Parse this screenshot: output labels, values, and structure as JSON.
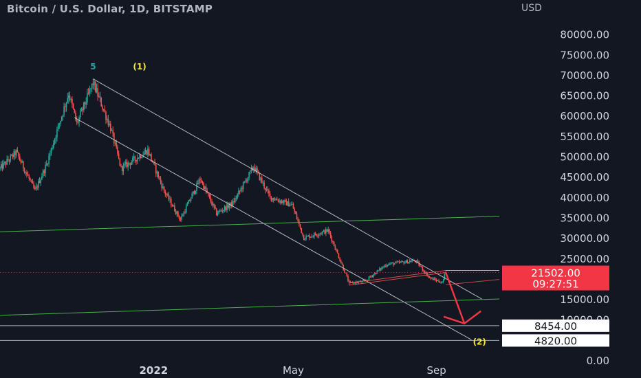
{
  "header": {
    "title": "Bitcoin / U.S. Dollar, 1D, BITSTAMP",
    "currency": "USD"
  },
  "colors": {
    "background": "#131722",
    "bull": "#26a69a",
    "bear": "#ef5350",
    "axis_text": "#d1d4dc",
    "support_line": "#4caf50",
    "channel_line": "#d1d4dc",
    "arrow": "#f23645",
    "wave_label": "#f5e542",
    "wave5_label": "#26a69a",
    "price_tag": "#f23645"
  },
  "chart_data": {
    "type": "candlestick",
    "symbol": "Bitcoin / U.S. Dollar",
    "interval": "1D",
    "exchange": "BITSTAMP",
    "y_axis": {
      "ticks": [
        0,
        10000,
        15000,
        20000,
        25000,
        30000,
        35000,
        40000,
        45000,
        50000,
        55000,
        60000,
        65000,
        70000,
        75000,
        80000
      ],
      "tick_labels": [
        "0.00",
        "10000.00",
        "15000.00",
        "20000.00",
        "25000.00",
        "30000.00",
        "35000.00",
        "40000.00",
        "45000.00",
        "50000.00",
        "55000.00",
        "60000.00",
        "65000.00",
        "70000.00",
        "75000.00",
        "80000.00"
      ],
      "ylim": [
        0,
        85000
      ]
    },
    "x_axis": {
      "xlim": [
        "2021-08-22",
        "2022-10-25"
      ],
      "ticks": [
        {
          "date": "2022-01-01",
          "label": "2022",
          "bold": true
        },
        {
          "date": "2022-05-01",
          "label": "May",
          "bold": false
        },
        {
          "date": "2022-09-01",
          "label": "Sep",
          "bold": false
        }
      ]
    },
    "price_series": [
      [
        "2021-08-22",
        47000
      ],
      [
        "2021-09-05",
        51000
      ],
      [
        "2021-09-21",
        41500
      ],
      [
        "2021-10-01",
        48000
      ],
      [
        "2021-10-20",
        65500
      ],
      [
        "2021-10-27",
        58000
      ],
      [
        "2021-11-10",
        68000
      ],
      [
        "2021-11-25",
        57000
      ],
      [
        "2021-12-04",
        47000
      ],
      [
        "2021-12-27",
        51500
      ],
      [
        "2022-01-10",
        41500
      ],
      [
        "2022-01-24",
        34500
      ],
      [
        "2022-02-10",
        44500
      ],
      [
        "2022-02-24",
        36000
      ],
      [
        "2022-03-10",
        38500
      ],
      [
        "2022-03-28",
        47500
      ],
      [
        "2022-04-11",
        40000
      ],
      [
        "2022-04-30",
        38000
      ],
      [
        "2022-05-10",
        30000
      ],
      [
        "2022-05-31",
        31800
      ],
      [
        "2022-06-13",
        22500
      ],
      [
        "2022-06-18",
        18900
      ],
      [
        "2022-07-01",
        19300
      ],
      [
        "2022-07-20",
        23500
      ],
      [
        "2022-08-14",
        24400
      ],
      [
        "2022-08-26",
        20200
      ],
      [
        "2022-09-06",
        19000
      ],
      [
        "2022-09-09",
        21502
      ]
    ],
    "current_price": {
      "label": "21502.00",
      "countdown": "09:27:51"
    },
    "wave_labels": [
      {
        "text": "5",
        "date": "2021-11-10",
        "price": 72000
      },
      {
        "text": "(1)",
        "date": "2021-12-20",
        "price": 72000
      },
      {
        "text": "(2)",
        "date": "2022-10-08",
        "price": 4500
      }
    ],
    "horizontal_levels": [
      {
        "label": "8454.00",
        "price": 8454
      },
      {
        "label": "4820.00",
        "price": 4820
      }
    ],
    "trend_lines": [
      {
        "name": "channel-upper",
        "from": [
          "2021-11-10",
          69000
        ],
        "to": [
          "2022-10-10",
          15000
        ]
      },
      {
        "name": "channel-lower",
        "from": [
          "2021-10-25",
          59500
        ],
        "to": [
          "2022-10-01",
          5000
        ]
      },
      {
        "name": "support-upper",
        "from": [
          "2021-08-22",
          31500
        ],
        "to": [
          "2022-10-25",
          35300
        ]
      },
      {
        "name": "support-lower",
        "from": [
          "2021-08-22",
          11000
        ],
        "to": [
          "2022-10-25",
          15000
        ]
      }
    ],
    "range_box": {
      "from": [
        "2022-06-18",
        18900
      ],
      "to": [
        "2022-09-09",
        21502
      ],
      "top": 22000
    },
    "projection_arrow": {
      "from": [
        "2022-09-09",
        21500
      ],
      "to": [
        "2022-09-25",
        9000
      ]
    }
  }
}
